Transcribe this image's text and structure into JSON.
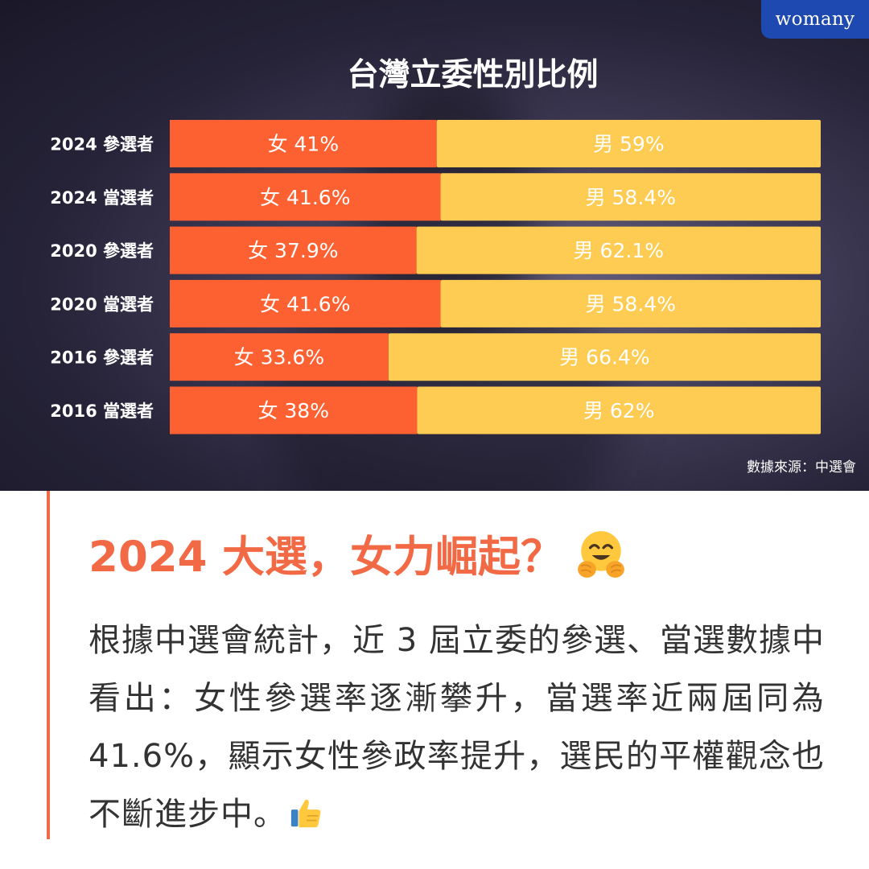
{
  "brand": "womany",
  "chart_data": {
    "type": "bar",
    "stacked": true,
    "orientation": "horizontal",
    "title": "台灣立委性別比例",
    "categories": [
      "2024 參選者",
      "2024 當選者",
      "2020 參選者",
      "2020 當選者",
      "2016 參選者",
      "2016 當選者"
    ],
    "series": [
      {
        "name": "女",
        "values": [
          41,
          41.6,
          37.9,
          41.6,
          33.6,
          38
        ],
        "labels": [
          "女 41%",
          "女 41.6%",
          "女 37.9%",
          "女 41.6%",
          "女 33.6%",
          "女 38%"
        ],
        "color": "#fd6132"
      },
      {
        "name": "男",
        "values": [
          59,
          58.4,
          62.1,
          58.4,
          66.4,
          62
        ],
        "labels": [
          "男 59%",
          "男 58.4%",
          "男 62.1%",
          "男 58.4%",
          "男 66.4%",
          "男 62%"
        ],
        "color": "#ffcc53"
      }
    ],
    "xlim": [
      0,
      100
    ],
    "source": "數據來源：中選會"
  },
  "article": {
    "headline": "2024 大選，女力崛起？",
    "headline_emoji": "hugging-face-icon",
    "body": "根據中選會統計，近 3 屆立委的參選、當選數據中看出：女性參選率逐漸攀升，當選率近兩屆同為 41.6%，顯示女性參政率提升，選民的平權觀念也不斷進步中。",
    "body_emoji": "thumbs-up-icon"
  },
  "colors": {
    "accent": "#f26a45",
    "female": "#fd6132",
    "male": "#ffcc53",
    "brand_blue": "#1d49b0"
  }
}
